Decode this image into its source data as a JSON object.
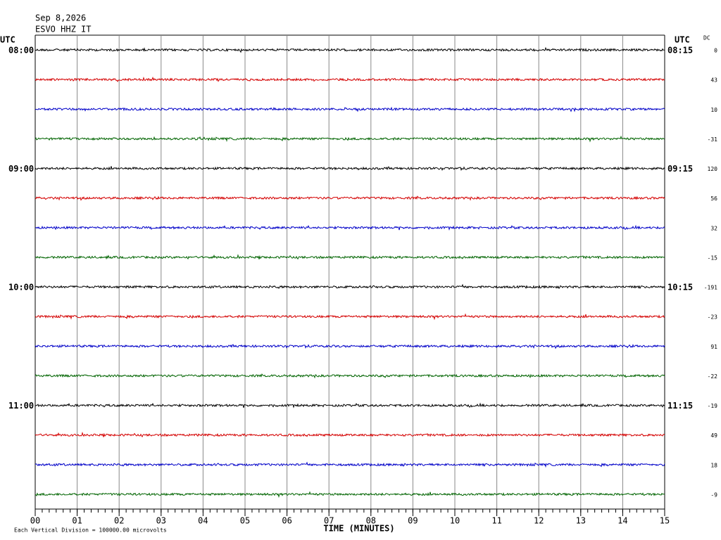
{
  "chart_data": {
    "type": "helicorder",
    "date": "Sep 8,2026",
    "station": "ESVO HHZ IT",
    "left_axis_label": "UTC",
    "right_axis_label": "UTC",
    "dc_label": "DC",
    "xlabel": "TIME (MINUTES)",
    "scale_note": "Each Vertical Division = 100000.00 microvolts",
    "xlim": [
      0,
      15
    ],
    "xticks": [
      {
        "value": 0,
        "label": "00"
      },
      {
        "value": 1,
        "label": "01"
      },
      {
        "value": 2,
        "label": "02"
      },
      {
        "value": 3,
        "label": "03"
      },
      {
        "value": 4,
        "label": "04"
      },
      {
        "value": 5,
        "label": "05"
      },
      {
        "value": 6,
        "label": "06"
      },
      {
        "value": 7,
        "label": "07"
      },
      {
        "value": 8,
        "label": "08"
      },
      {
        "value": 9,
        "label": "09"
      },
      {
        "value": 10,
        "label": "10"
      },
      {
        "value": 11,
        "label": "11"
      },
      {
        "value": 12,
        "label": "12"
      },
      {
        "value": 13,
        "label": "13"
      },
      {
        "value": 14,
        "label": "14"
      },
      {
        "value": 15,
        "label": "15"
      }
    ],
    "colors": [
      "#000000",
      "#d40000",
      "#0000c8",
      "#006400"
    ],
    "left_labels": [
      "08:00",
      null,
      null,
      null,
      "09:00",
      null,
      null,
      null,
      "10:00",
      null,
      null,
      null,
      "11:00",
      null,
      null,
      null
    ],
    "right_labels": [
      "08:15",
      null,
      null,
      null,
      "09:15",
      null,
      null,
      null,
      "10:15",
      null,
      null,
      null,
      "11:15",
      null,
      null,
      null
    ],
    "dc": [
      0,
      43,
      10,
      -31,
      120,
      56,
      32,
      -15,
      -191,
      -23,
      91,
      -22,
      -19,
      49,
      18,
      -9
    ]
  }
}
